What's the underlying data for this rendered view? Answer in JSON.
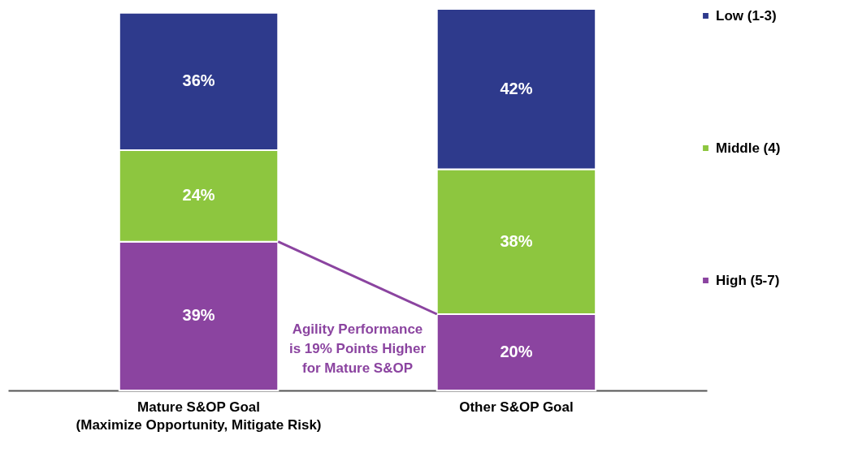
{
  "chart_data": {
    "type": "bar",
    "stacked": true,
    "legend": "right",
    "categories": [
      "Mature S&OP Goal\n(Maximize Opportunity, Mitigate Risk)",
      "Other S&OP Goal"
    ],
    "series": [
      {
        "name": "High (5-7)",
        "color": "#8b44a0",
        "values": [
          39,
          20
        ],
        "value_labels": [
          "39%",
          "20%"
        ]
      },
      {
        "name": "Middle (4)",
        "color": "#8dc63f",
        "values": [
          24,
          38
        ],
        "value_labels": [
          "24%",
          "38%"
        ]
      },
      {
        "name": "Low (1-3)",
        "color": "#2e3a8c",
        "values": [
          36,
          42
        ],
        "value_labels": [
          "36%",
          "42%"
        ]
      }
    ],
    "annotations": [
      "Agility Performance\nis 19% Points Higher\nfor Mature S&OP"
    ]
  }
}
